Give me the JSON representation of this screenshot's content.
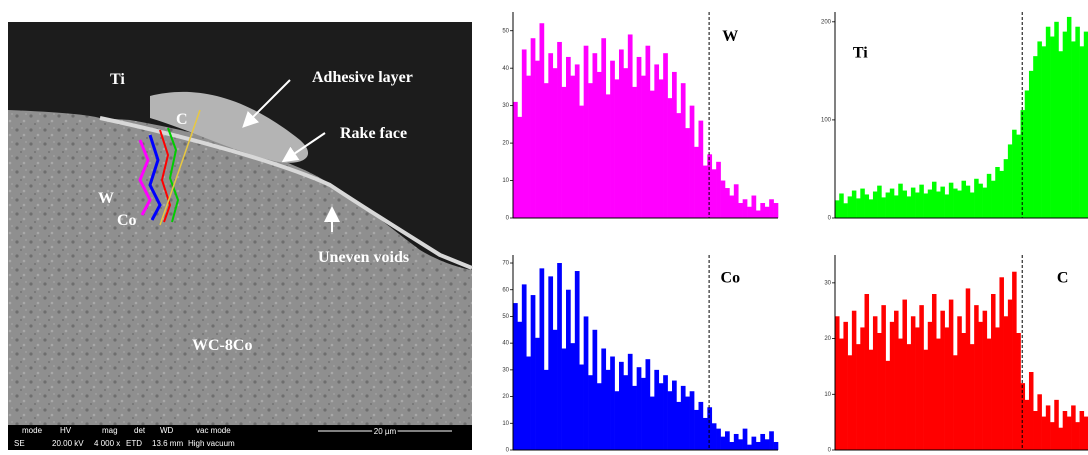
{
  "sem_image": {
    "labels": [
      "Ti",
      "C",
      "Adhesive layer",
      "Rake face",
      "W",
      "Co",
      "Uneven voids",
      "WC-8Co"
    ],
    "info_bar": {
      "headers": [
        "mode",
        "HV",
        "mag",
        "det",
        "WD",
        "vac mode"
      ],
      "values": [
        "SE",
        "20.00 kV",
        "4 000 x",
        "ETD",
        "13.6 mm",
        "High vacuum"
      ]
    },
    "scale_bar": "20 µm"
  },
  "chart_data": [
    {
      "type": "bar",
      "title": "W",
      "color": "#ff00ff",
      "ylim": [
        0,
        55
      ],
      "yticks": [
        0,
        10,
        20,
        30,
        40,
        50
      ],
      "values": [
        31,
        27,
        45,
        38,
        48,
        42,
        52,
        36,
        44,
        40,
        47,
        35,
        43,
        38,
        41,
        30,
        46,
        36,
        44,
        39,
        48,
        33,
        42,
        37,
        45,
        40,
        49,
        35,
        43,
        38,
        46,
        34,
        41,
        37,
        44,
        32,
        39,
        28,
        36,
        24,
        30,
        19,
        26,
        14,
        17,
        13,
        15,
        10,
        8,
        6,
        9,
        4,
        5,
        3,
        6,
        2,
        4,
        3,
        5,
        4
      ]
    },
    {
      "type": "bar",
      "title": "Ti",
      "color": "#00ff00",
      "ylim": [
        0,
        210
      ],
      "yticks": [
        0,
        100,
        200
      ],
      "values": [
        18,
        25,
        15,
        22,
        28,
        20,
        30,
        24,
        19,
        27,
        33,
        21,
        26,
        30,
        23,
        35,
        28,
        22,
        31,
        26,
        34,
        25,
        29,
        37,
        27,
        32,
        24,
        36,
        30,
        28,
        38,
        33,
        26,
        40,
        35,
        31,
        45,
        38,
        52,
        48,
        60,
        75,
        90,
        85,
        110,
        130,
        150,
        165,
        180,
        175,
        195,
        185,
        200,
        170,
        190,
        205,
        180,
        195,
        175,
        190
      ]
    },
    {
      "type": "bar",
      "title": "Co",
      "color": "#0000ff",
      "ylim": [
        0,
        73
      ],
      "yticks": [
        0,
        10,
        20,
        30,
        40,
        50,
        60,
        70
      ],
      "values": [
        55,
        48,
        62,
        35,
        58,
        42,
        68,
        30,
        65,
        45,
        70,
        38,
        60,
        40,
        67,
        32,
        50,
        28,
        45,
        25,
        38,
        30,
        35,
        22,
        33,
        28,
        36,
        24,
        31,
        27,
        34,
        20,
        30,
        25,
        28,
        22,
        26,
        18,
        24,
        20,
        22,
        15,
        18,
        12,
        16,
        10,
        8,
        5,
        7,
        3,
        6,
        4,
        8,
        2,
        5,
        3,
        6,
        4,
        7,
        3
      ]
    },
    {
      "type": "bar",
      "title": "C",
      "color": "#ff0000",
      "ylim": [
        0,
        35
      ],
      "yticks": [
        0,
        10,
        20,
        30
      ],
      "values": [
        24,
        20,
        23,
        17,
        25,
        19,
        22,
        28,
        18,
        24,
        21,
        26,
        16,
        23,
        25,
        20,
        27,
        19,
        24,
        22,
        26,
        18,
        23,
        28,
        20,
        25,
        22,
        27,
        17,
        24,
        21,
        29,
        19,
        26,
        23,
        25,
        20,
        28,
        22,
        31,
        24,
        27,
        32,
        21,
        12,
        9,
        14,
        7,
        10,
        6,
        8,
        5,
        9,
        4,
        7,
        6,
        8,
        5,
        7,
        6
      ]
    }
  ]
}
